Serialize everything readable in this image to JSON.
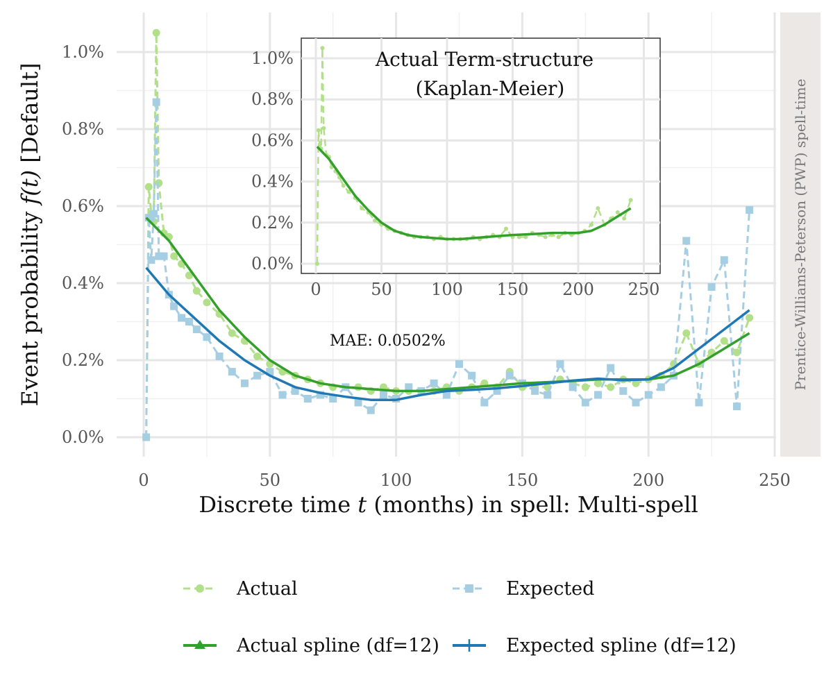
{
  "chart_data": {
    "type": "line",
    "xlabel_pre": "Discrete time",
    "xlabel_var": "t",
    "xlabel_post": "(months) in spell: Multi-spell",
    "ylabel_pre": "Event probability",
    "ylabel_func": "f(t)",
    "ylabel_post": "[Default]",
    "strip_label": "Prentice-Williams-Peterson (PWP) spell-time",
    "annotation": "MAE: 0.0502%",
    "xlim": [
      0,
      250
    ],
    "ylim": [
      0,
      1.05
    ],
    "x_ticks": [
      "0",
      "50",
      "100",
      "150",
      "200",
      "250"
    ],
    "y_ticks": [
      "0.0%",
      "0.2%",
      "0.4%",
      "0.6%",
      "0.8%",
      "1.0%"
    ],
    "colors": {
      "actual": "#b2df8a",
      "expected": "#a6cee3",
      "actual_spline": "#33a02c",
      "expected_spline": "#1f78b4",
      "strip_bg": "#ebe8e6"
    },
    "series": [
      {
        "name": "Actual",
        "style": "dashed-points",
        "x": [
          1,
          2,
          3,
          4,
          5,
          6,
          8,
          10,
          12,
          15,
          18,
          21,
          25,
          30,
          35,
          40,
          45,
          50,
          55,
          60,
          65,
          70,
          75,
          80,
          85,
          90,
          95,
          100,
          105,
          110,
          115,
          120,
          125,
          130,
          135,
          140,
          145,
          150,
          155,
          160,
          165,
          170,
          175,
          180,
          185,
          190,
          195,
          200,
          205,
          210,
          215,
          220,
          225,
          230,
          235,
          240
        ],
        "y": [
          0.0,
          0.65,
          0.58,
          0.56,
          1.05,
          0.66,
          0.53,
          0.52,
          0.47,
          0.45,
          0.42,
          0.38,
          0.35,
          0.32,
          0.27,
          0.25,
          0.21,
          0.19,
          0.17,
          0.16,
          0.15,
          0.14,
          0.13,
          0.13,
          0.13,
          0.12,
          0.13,
          0.12,
          0.12,
          0.12,
          0.12,
          0.13,
          0.12,
          0.13,
          0.14,
          0.13,
          0.17,
          0.13,
          0.13,
          0.13,
          0.15,
          0.14,
          0.13,
          0.14,
          0.13,
          0.15,
          0.14,
          0.15,
          0.16,
          0.19,
          0.27,
          0.19,
          0.22,
          0.25,
          0.22,
          0.31
        ]
      },
      {
        "name": "Expected",
        "style": "dashed-squares",
        "x": [
          1,
          2,
          3,
          4,
          5,
          6,
          8,
          10,
          12,
          15,
          18,
          21,
          25,
          30,
          35,
          40,
          45,
          50,
          55,
          60,
          65,
          70,
          75,
          80,
          85,
          90,
          95,
          100,
          105,
          110,
          115,
          120,
          125,
          130,
          135,
          140,
          145,
          150,
          155,
          160,
          165,
          170,
          175,
          180,
          185,
          190,
          195,
          200,
          205,
          210,
          215,
          220,
          225,
          230,
          235,
          240
        ],
        "y": [
          0.0,
          0.57,
          0.46,
          0.58,
          0.87,
          0.47,
          0.47,
          0.37,
          0.34,
          0.31,
          0.3,
          0.28,
          0.26,
          0.21,
          0.17,
          0.14,
          0.16,
          0.17,
          0.11,
          0.12,
          0.1,
          0.11,
          0.1,
          0.13,
          0.09,
          0.07,
          0.11,
          0.1,
          0.13,
          0.12,
          0.14,
          0.11,
          0.19,
          0.16,
          0.09,
          0.12,
          0.16,
          0.14,
          0.12,
          0.11,
          0.19,
          0.13,
          0.09,
          0.11,
          0.18,
          0.12,
          0.09,
          0.11,
          0.13,
          0.16,
          0.51,
          0.09,
          0.39,
          0.46,
          0.08,
          0.59
        ]
      },
      {
        "name": "Actual spline (df=12)",
        "style": "solid",
        "x": [
          1,
          10,
          20,
          30,
          40,
          50,
          60,
          70,
          80,
          90,
          100,
          110,
          120,
          130,
          140,
          150,
          160,
          170,
          180,
          190,
          200,
          210,
          220,
          230,
          240
        ],
        "y": [
          0.57,
          0.51,
          0.42,
          0.33,
          0.26,
          0.2,
          0.16,
          0.14,
          0.13,
          0.125,
          0.12,
          0.12,
          0.125,
          0.13,
          0.135,
          0.14,
          0.143,
          0.146,
          0.15,
          0.15,
          0.15,
          0.16,
          0.19,
          0.23,
          0.27
        ]
      },
      {
        "name": "Expected spline (df=12)",
        "style": "solid",
        "x": [
          1,
          10,
          20,
          30,
          40,
          50,
          60,
          70,
          80,
          90,
          100,
          110,
          120,
          130,
          140,
          150,
          160,
          170,
          180,
          190,
          200,
          210,
          220,
          230,
          240
        ],
        "y": [
          0.44,
          0.37,
          0.31,
          0.25,
          0.2,
          0.16,
          0.13,
          0.115,
          0.105,
          0.097,
          0.097,
          0.11,
          0.12,
          0.123,
          0.127,
          0.133,
          0.14,
          0.147,
          0.152,
          0.148,
          0.15,
          0.18,
          0.23,
          0.28,
          0.33
        ]
      }
    ],
    "inset": {
      "title_line1": "Actual Term-structure",
      "title_line2": "(Kaplan-Meier)",
      "xlim": [
        0,
        250
      ],
      "ylim": [
        0,
        1.05
      ],
      "x_ticks": [
        "0",
        "50",
        "100",
        "150",
        "200",
        "250"
      ],
      "y_ticks": [
        "0.0%",
        "0.2%",
        "0.4%",
        "0.6%",
        "0.8%",
        "1.0%"
      ],
      "series": [
        {
          "name": "Actual",
          "style": "dashed-points",
          "x": [
            1,
            2,
            3,
            4,
            5,
            6,
            8,
            10,
            12,
            15,
            18,
            21,
            25,
            30,
            35,
            40,
            45,
            50,
            55,
            60,
            65,
            70,
            75,
            80,
            85,
            90,
            95,
            100,
            105,
            110,
            115,
            120,
            125,
            130,
            135,
            140,
            145,
            150,
            155,
            160,
            165,
            170,
            175,
            180,
            185,
            190,
            195,
            200,
            205,
            210,
            215,
            220,
            225,
            230,
            235,
            240
          ],
          "y": [
            0.0,
            0.65,
            0.58,
            0.56,
            1.05,
            0.66,
            0.53,
            0.52,
            0.47,
            0.45,
            0.42,
            0.38,
            0.35,
            0.32,
            0.27,
            0.25,
            0.21,
            0.19,
            0.17,
            0.16,
            0.15,
            0.14,
            0.13,
            0.13,
            0.13,
            0.12,
            0.13,
            0.12,
            0.12,
            0.12,
            0.12,
            0.13,
            0.12,
            0.13,
            0.14,
            0.13,
            0.17,
            0.13,
            0.13,
            0.13,
            0.15,
            0.14,
            0.13,
            0.14,
            0.13,
            0.15,
            0.14,
            0.15,
            0.16,
            0.19,
            0.27,
            0.19,
            0.22,
            0.25,
            0.22,
            0.31
          ]
        },
        {
          "name": "Actual spline (df=12)",
          "style": "solid",
          "x": [
            1,
            10,
            20,
            30,
            40,
            50,
            60,
            70,
            80,
            90,
            100,
            110,
            120,
            130,
            140,
            150,
            160,
            170,
            180,
            190,
            200,
            210,
            220,
            230,
            240
          ],
          "y": [
            0.57,
            0.51,
            0.42,
            0.33,
            0.26,
            0.2,
            0.16,
            0.14,
            0.13,
            0.125,
            0.12,
            0.12,
            0.125,
            0.13,
            0.135,
            0.14,
            0.143,
            0.146,
            0.15,
            0.15,
            0.15,
            0.16,
            0.19,
            0.23,
            0.27
          ]
        }
      ]
    },
    "legend": {
      "placement": "bottom",
      "entries": [
        "Actual",
        "Expected",
        "Actual spline (df=12)",
        "Expected spline (df=12)"
      ]
    }
  }
}
